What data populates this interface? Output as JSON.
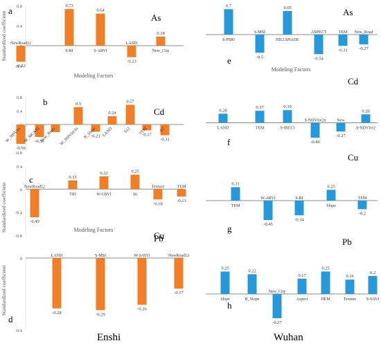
{
  "regions": {
    "left": "Enshi",
    "right": "Wuhan"
  },
  "chart_data": [
    {
      "type": "bar",
      "panel": "a",
      "element": "As",
      "color": "#f07f2a",
      "ylabel": "Standardized coefficient",
      "xlabel": "Modeling Factors",
      "ylim": [
        -0.4,
        0.8
      ],
      "yticks": [
        -0.4,
        0,
        0.4,
        0.8
      ],
      "categories": [
        "NewRoad12",
        "S-RI",
        "S-ARVI",
        "LAND",
        "New_City"
      ],
      "values": [
        -0.32,
        0.73,
        0.64,
        -0.23,
        0.18
      ],
      "data_labels": [
        "-0.32",
        "0.73",
        "0.64",
        "-0.23",
        "0.18"
      ]
    },
    {
      "type": "bar",
      "panel": "b",
      "element": "Cd",
      "color": "#f07f2a",
      "ylabel": "",
      "xlabel": "",
      "ylim": [
        -0.8,
        0.8
      ],
      "yticks": [
        -0.8,
        -0.4,
        0,
        0.4,
        0.8
      ],
      "categories": [
        "W_NDVIre",
        "W_MCARI",
        "New_River",
        "W_NDVIre1n",
        "R_Slope",
        "LAND",
        "S12",
        "TEM",
        "B2"
      ],
      "values": [
        -0.56,
        -0.36,
        -0.22,
        0.5,
        -0.21,
        0.24,
        0.57,
        -0.17,
        -0.31
      ],
      "data_labels": [
        "-0.56",
        "-0.36",
        "",
        "0.5",
        "-0.21",
        "0.24",
        "0.57",
        "-0.17",
        "-0.31"
      ]
    },
    {
      "type": "bar",
      "panel": "c",
      "element": "Cu",
      "color": "#f07f2a",
      "ylabel": "Standardized coefficient",
      "xlabel": "Modeling Factors",
      "ylim": [
        -0.8,
        0.4
      ],
      "yticks": [
        -0.8,
        -0.4,
        0,
        0.4
      ],
      "categories": [
        "NewRoad12",
        "TRI",
        "W-GRVI",
        "S6",
        "Texture",
        "TEM"
      ],
      "values": [
        -0.49,
        0.15,
        0.22,
        0.25,
        -0.18,
        -0.13
      ],
      "data_labels": [
        "-0.49",
        "0.15",
        "0.22",
        "0.25",
        "-0.18",
        "-0.13"
      ]
    },
    {
      "type": "bar",
      "panel": "d",
      "element": "Pb",
      "color": "#f07f2a",
      "ylabel": "Standardized coefficient",
      "xlabel": "",
      "ylim": [
        -0.4,
        0
      ],
      "yticks": [
        -0.4,
        0
      ],
      "categories": [
        "LAND",
        "S-MSI",
        "W-SAVI1",
        "NewRoad12"
      ],
      "values": [
        -0.28,
        -0.29,
        -0.26,
        -0.17
      ],
      "data_labels": [
        "-0.28",
        "-0.29",
        "-0.26",
        "-0.17"
      ]
    },
    {
      "type": "bar",
      "panel": "e",
      "element": "As",
      "color": "#2899d8",
      "ylabel": "",
      "xlabel": "Modeling Factors",
      "ylim": [
        -0.8,
        0.8
      ],
      "yticks": [],
      "categories": [
        "S-PSRI",
        "S-MSI",
        "HILLSHADE",
        "ASPECT",
        "TEM",
        "New_Road"
      ],
      "values": [
        0.7,
        -0.5,
        0.65,
        -0.54,
        -0.31,
        -0.27
      ],
      "data_labels": [
        "0.7",
        "-0.5",
        "0.65",
        "-0.54",
        "-0.31",
        "-0.27"
      ]
    },
    {
      "type": "bar",
      "panel": "f",
      "element": "Cd",
      "color": "#2899d8",
      "ylabel": "",
      "xlabel": "",
      "ylim": [
        -0.8,
        0.8
      ],
      "yticks": [],
      "categories": [
        "LAND",
        "TEM",
        "S-IRECI",
        "S-NDVIre2n",
        "New",
        "S-NDVIre2"
      ],
      "values": [
        0.28,
        0.37,
        0.39,
        -0.46,
        -0.27,
        0.26
      ],
      "data_labels": [
        "0.28",
        "0.37",
        "0.39",
        "-0.46",
        "-0.27",
        "0.26"
      ]
    },
    {
      "type": "bar",
      "panel": "g",
      "element": "Cu",
      "color": "#2899d8",
      "ylabel": "",
      "xlabel": "",
      "ylim": [
        -0.8,
        0.8
      ],
      "yticks": [],
      "categories": [
        "TEM",
        "W-ARVI",
        "S-RI",
        "Slope",
        "TEM"
      ],
      "values": [
        0.31,
        -0.45,
        -0.34,
        0.25,
        -0.2
      ],
      "data_labels": [
        "0.31",
        "-0.45",
        "-0.34",
        "0.25",
        "-0.2"
      ]
    },
    {
      "type": "bar",
      "panel": "h",
      "element": "Pb",
      "color": "#2899d8",
      "ylabel": "",
      "xlabel": "",
      "ylim": [
        -0.4,
        0.4
      ],
      "yticks": [],
      "categories": [
        "Slope",
        "R_Slope",
        "New_City",
        "Aspect",
        "DEM",
        "Texture",
        "S-SAVI"
      ],
      "values": [
        0.25,
        0.22,
        -0.27,
        0.17,
        0.25,
        0.16,
        0.2
      ],
      "data_labels": [
        "0.25",
        "0.22",
        "-0.27",
        "0.17",
        "0.25",
        "0.16",
        "0.2"
      ]
    }
  ]
}
